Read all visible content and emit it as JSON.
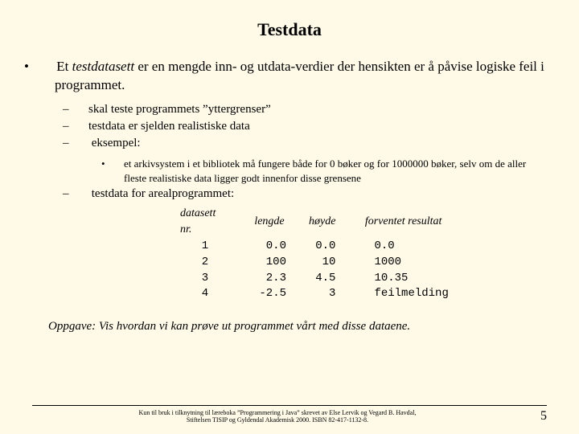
{
  "title": "Testdata",
  "bullet1_a": "Et ",
  "bullet1_b": "testdatasett",
  "bullet1_c": " er en mengde inn- og utdata-verdier der hensikten er å påvise logiske feil i programmet.",
  "sub1": "skal teste programmets ”yttergrenser”",
  "sub2": "testdata er sjelden realistiske data",
  "sub3": "eksempel:",
  "subsub1": "et arkivsystem i et bibliotek må fungere både for 0 bøker og for 1000000 bøker, selv om de aller fleste realistiske data ligger godt innenfor disse grensene",
  "sub4": "testdata for arealprogrammet:",
  "table": {
    "headers": [
      "datasett nr.",
      "lengde",
      "høyde",
      "forventet resultat"
    ],
    "rows": [
      [
        "1",
        "0.0",
        "0.0",
        "0.0"
      ],
      [
        "2",
        "100",
        "10",
        "1000"
      ],
      [
        "3",
        "2.3",
        "4.5",
        "10.35"
      ],
      [
        "4",
        "-2.5",
        "3",
        "feilmelding"
      ]
    ]
  },
  "task": "Oppgave: Vis hvordan vi kan prøve ut programmet vårt med disse dataene.",
  "footer1": "Kun til bruk i tilknytning til læreboka ”Programmering i Java” skrevet av Else Lervik og Vegard B. Havdal,",
  "footer2": "Stiftelsen TISIP og Gyldendal Akademisk 2000. ISBN 82-417-1132-8.",
  "page": "5"
}
